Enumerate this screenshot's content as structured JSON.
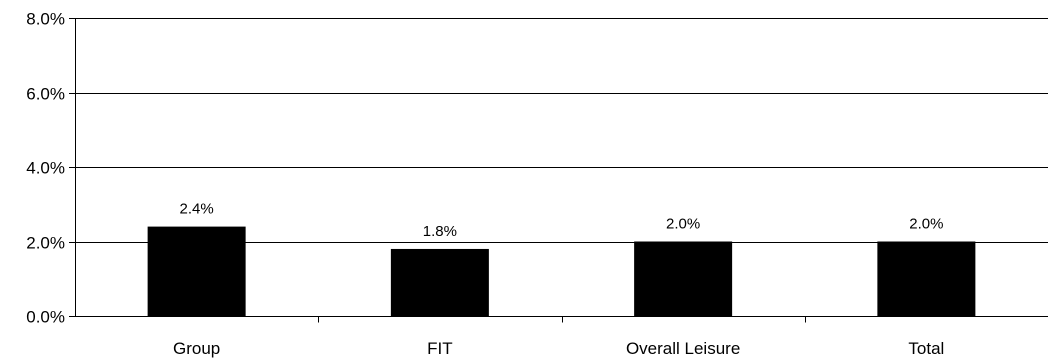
{
  "chart_data": {
    "type": "bar",
    "categories": [
      "Group",
      "FIT",
      "Overall Leisure",
      "Total"
    ],
    "values": [
      2.4,
      1.8,
      2.0,
      2.0
    ],
    "data_labels": [
      "2.4%",
      "1.8%",
      "2.0%",
      "2.0%"
    ],
    "ylim": [
      0,
      8
    ],
    "yticks": [
      0,
      2,
      4,
      6,
      8
    ],
    "ytick_labels": [
      "0.0%",
      "2.0%",
      "4.0%",
      "6.0%",
      "8.0%"
    ],
    "title": "",
    "xlabel": "",
    "ylabel": "",
    "grid": true,
    "legend": "none",
    "bar_color": "#000000",
    "grid_color": "#000000"
  }
}
